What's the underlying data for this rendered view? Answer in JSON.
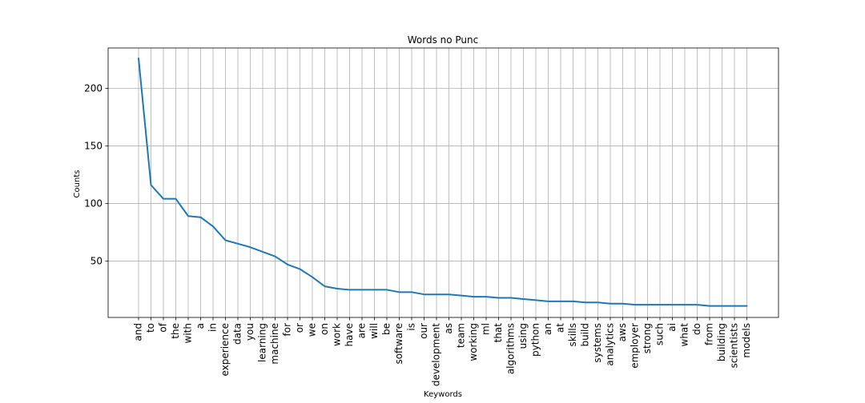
{
  "chart_data": {
    "type": "line",
    "title": "Words no Punc",
    "xlabel": "Keywords",
    "ylabel": "Counts",
    "ylim": [
      1,
      235
    ],
    "yticks": [
      50,
      100,
      150,
      200
    ],
    "grid": true,
    "categories": [
      "and",
      "to",
      "of",
      "the",
      "with",
      "a",
      "in",
      "experience",
      "data",
      "you",
      "learning",
      "machine",
      "for",
      "or",
      "we",
      "on",
      "work",
      "have",
      "are",
      "will",
      "be",
      "software",
      "is",
      "our",
      "development",
      "as",
      "team",
      "working",
      "ml",
      "that",
      "algorithms",
      "using",
      "python",
      "an",
      "at",
      "skills",
      "build",
      "systems",
      "analytics",
      "aws",
      "employer",
      "strong",
      "such",
      "ai",
      "what",
      "do",
      "from",
      "building",
      "scientists",
      "models"
    ],
    "series": [
      {
        "color": "#1f77b4",
        "values": [
          226,
          116,
          104,
          104,
          89,
          88,
          80,
          68,
          65,
          62,
          58,
          54,
          47,
          43,
          36,
          28,
          26,
          25,
          25,
          25,
          25,
          23,
          23,
          21,
          21,
          21,
          20,
          19,
          19,
          18,
          18,
          17,
          16,
          15,
          15,
          15,
          14,
          14,
          13,
          13,
          12,
          12,
          12,
          12,
          12,
          12,
          11,
          11,
          11,
          11
        ]
      }
    ]
  }
}
